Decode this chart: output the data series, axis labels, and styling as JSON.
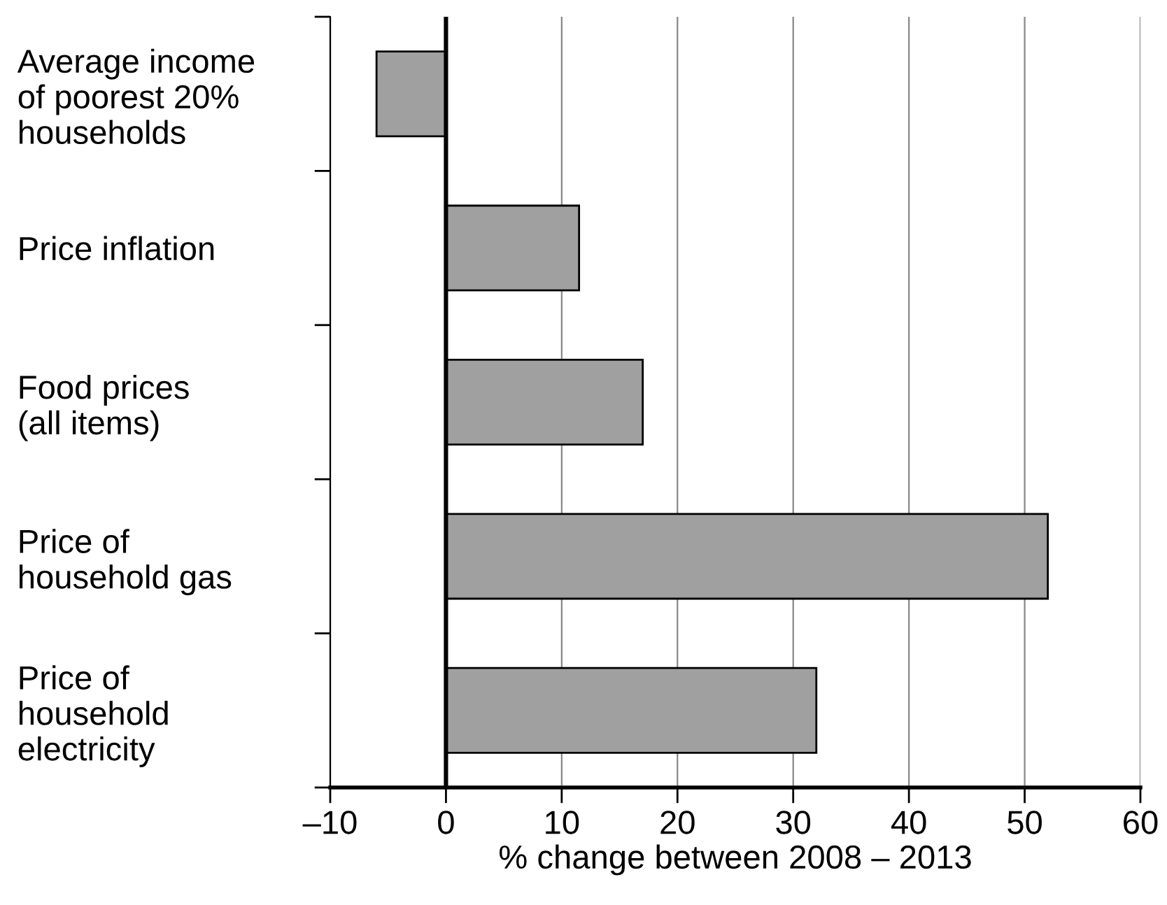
{
  "chart_data": {
    "type": "bar",
    "orientation": "horizontal",
    "categories": [
      "Average income\nof poorest 20%\nhouseholds",
      "Price inflation",
      "Food prices\n(all items)",
      "Price of\nhousehold gas",
      "Price of\nhousehold\nelectricity"
    ],
    "values": [
      -6,
      11.5,
      17,
      52,
      32
    ],
    "color": "#a0a0a0",
    "xlabel": "% change between 2008 – 2013",
    "xlim": [
      -10,
      60
    ],
    "xticks": [
      {
        "value": -10,
        "label": "–10"
      },
      0,
      10,
      20,
      30,
      40,
      50,
      60
    ],
    "grid": "x",
    "ref_lines": [
      {
        "axis": "x",
        "value": 0,
        "color": "#000000"
      }
    ]
  }
}
